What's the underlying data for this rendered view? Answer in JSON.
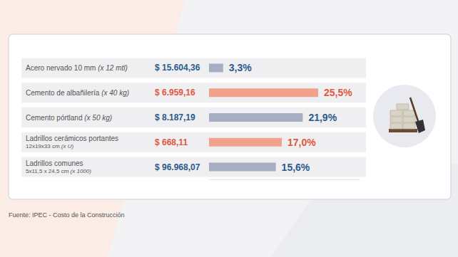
{
  "chart_data": {
    "type": "bar",
    "orientation": "horizontal",
    "categories": [
      "Acero nervado 10 mm (x 12 mtl)",
      "Cemento de albañilería (x 40 kg)",
      "Cemento pórtland (x 50 kg)",
      "Ladrillos cerámicos portantes\n12x19x33 cm (x U)",
      "Ladrillos comunes\n5x11,5 x 24,5 cm (x 1000)"
    ],
    "values": [
      3.3,
      25.5,
      21.9,
      17.0,
      15.6
    ],
    "value_labels": [
      "3,3%",
      "25,5%",
      "21,9%",
      "17,0%",
      "15,6%"
    ],
    "prices": [
      15604.36,
      6959.16,
      8187.19,
      668.11,
      96968.07
    ],
    "price_labels": [
      "$ 15.604,36",
      "$ 6.959,16",
      "$ 8.187,19",
      "$ 668,11",
      "$ 96.968,07"
    ],
    "colors": [
      "#a7aec4",
      "#f0a28b",
      "#a7aec4",
      "#f0a28b",
      "#a7aec4"
    ],
    "xlim": [
      0,
      35
    ],
    "data_labels": true,
    "tick_labels": "y",
    "grid": false,
    "source": "Fuente: IPEC - Costo de la Construcción"
  }
}
